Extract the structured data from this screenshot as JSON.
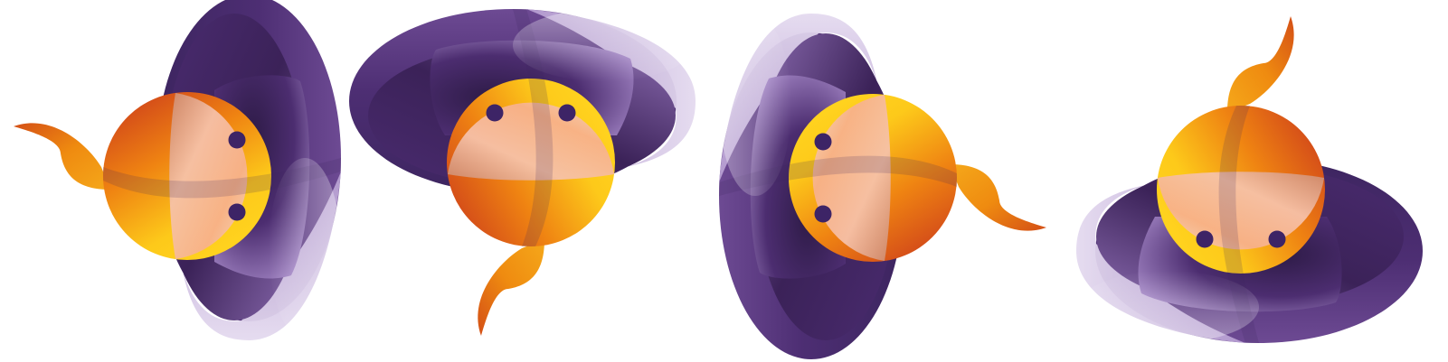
{
  "illustration": {
    "subject": "character-with-hat-four-rotations",
    "rotations_deg": [
      0,
      90,
      180,
      270
    ],
    "colors": {
      "hat_dark": "#3d2560",
      "hat_mid": "#5a3584",
      "hat_light": "#c4b0d8",
      "hat_pale": "#ded2ea",
      "body_red": "#c8341c",
      "body_orange": "#ef8312",
      "body_yellow": "#fdc91a",
      "face_pale": "#f7d8d0",
      "face_peach": "#f7b08e",
      "eye": "#3d2466",
      "background": "#ffffff"
    }
  }
}
